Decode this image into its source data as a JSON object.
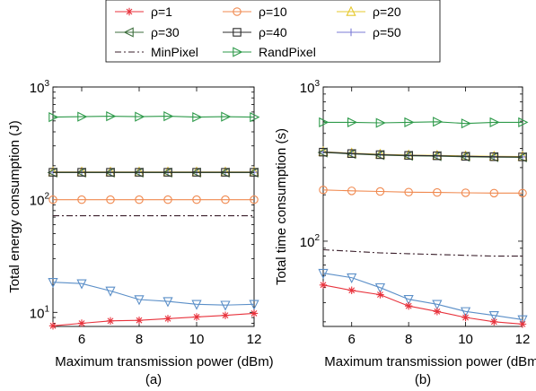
{
  "legend": [
    {
      "label": "ρ=1",
      "color": "#e8323c",
      "marker": "asterisk",
      "dash": ""
    },
    {
      "label": "ρ=10",
      "color": "#f0894f",
      "marker": "circle",
      "dash": ""
    },
    {
      "label": "ρ=20",
      "color": "#e6c82d",
      "marker": "triangle-up",
      "dash": ""
    },
    {
      "label": "ρ=30",
      "color": "#3c6e3c",
      "marker": "triangle-left",
      "dash": ""
    },
    {
      "label": "ρ=40",
      "color": "#2b2b2b",
      "marker": "square",
      "dash": ""
    },
    {
      "label": "ρ=50",
      "color": "#7b7bd6",
      "marker": "plus",
      "dash": ""
    },
    {
      "label": "MinPixel",
      "color": "#3a1f2b",
      "marker": "none",
      "dash": "7,3,2,3"
    },
    {
      "label": "RandPixel",
      "color": "#2e9a4a",
      "marker": "triangle-right",
      "dash": ""
    },
    {
      "label": "",
      "color": "#5b8fc8",
      "marker": "triangle-down",
      "dash": ""
    }
  ],
  "chart_data": [
    {
      "type": "line",
      "caption": "(a)",
      "xlabel": "Maximum transmission power (dBm)",
      "ylabel": "Total energy consumption (J)",
      "yscale": "log",
      "xlim": [
        5,
        12
      ],
      "ylim": [
        7.5,
        1000
      ],
      "xticks": [
        6,
        8,
        10,
        12
      ],
      "yticks": [
        {
          "value": 10,
          "base": "10",
          "exp": "1"
        },
        {
          "value": 100,
          "base": "10",
          "exp": "2"
        },
        {
          "value": 1000,
          "base": "10",
          "exp": "3"
        }
      ],
      "x": [
        5,
        6,
        7,
        8,
        9,
        10,
        11,
        12
      ],
      "series": [
        {
          "legend_index": 7,
          "values": [
            540,
            545,
            550,
            545,
            550,
            540,
            545,
            540
          ]
        },
        {
          "legend_index": 2,
          "values": [
            176,
            176,
            176,
            176,
            176,
            176,
            176,
            176
          ]
        },
        {
          "legend_index": 5,
          "values": [
            175,
            175,
            175,
            175,
            175,
            175,
            175,
            175
          ]
        },
        {
          "legend_index": 3,
          "values": [
            174,
            174,
            174,
            174,
            174,
            174,
            174,
            174
          ]
        },
        {
          "legend_index": 4,
          "values": [
            175,
            175,
            175,
            175,
            175,
            175,
            175,
            175
          ]
        },
        {
          "legend_index": 1,
          "values": [
            100,
            100,
            100,
            100,
            100,
            100,
            100,
            100
          ]
        },
        {
          "legend_index": 6,
          "values": [
            72,
            72,
            72,
            72,
            72,
            72,
            72,
            72
          ]
        },
        {
          "legend_index": 8,
          "values": [
            18.5,
            18,
            15.5,
            13,
            12.5,
            11.8,
            11.6,
            11.8
          ]
        },
        {
          "legend_index": 0,
          "values": [
            7.6,
            8,
            8.4,
            8.5,
            8.8,
            9.1,
            9.4,
            9.8
          ]
        }
      ]
    },
    {
      "type": "line",
      "caption": "(b)",
      "xlabel": "Maximum transmission power (dBm)",
      "ylabel": "Total time consumption (s)",
      "yscale": "log",
      "xlim": [
        5,
        12
      ],
      "ylim": [
        28,
        1000
      ],
      "xticks": [
        6,
        8,
        10,
        12
      ],
      "yticks": [
        {
          "value": 100,
          "base": "10",
          "exp": "2"
        },
        {
          "value": 1000,
          "base": "10",
          "exp": "3"
        }
      ],
      "x": [
        5,
        6,
        7,
        8,
        9,
        10,
        11,
        12
      ],
      "series": [
        {
          "legend_index": 7,
          "values": [
            590,
            590,
            585,
            590,
            595,
            580,
            590,
            590
          ]
        },
        {
          "legend_index": 2,
          "values": [
            380,
            372,
            366,
            362,
            360,
            357,
            355,
            354
          ]
        },
        {
          "legend_index": 5,
          "values": [
            378,
            370,
            364,
            360,
            358,
            355,
            353,
            352
          ]
        },
        {
          "legend_index": 3,
          "values": [
            376,
            368,
            362,
            358,
            356,
            353,
            351,
            350
          ]
        },
        {
          "legend_index": 4,
          "values": [
            378,
            370,
            364,
            360,
            358,
            355,
            353,
            352
          ]
        },
        {
          "legend_index": 1,
          "values": [
            215,
            212,
            210,
            208,
            207,
            206,
            205,
            205
          ]
        },
        {
          "legend_index": 6,
          "values": [
            88,
            86,
            84,
            83,
            82,
            81,
            80,
            80
          ]
        },
        {
          "legend_index": 8,
          "values": [
            62,
            58,
            50,
            42,
            39,
            35,
            33,
            31
          ]
        },
        {
          "legend_index": 0,
          "values": [
            52,
            48,
            45,
            38,
            35,
            32,
            30,
            29
          ]
        }
      ]
    }
  ]
}
